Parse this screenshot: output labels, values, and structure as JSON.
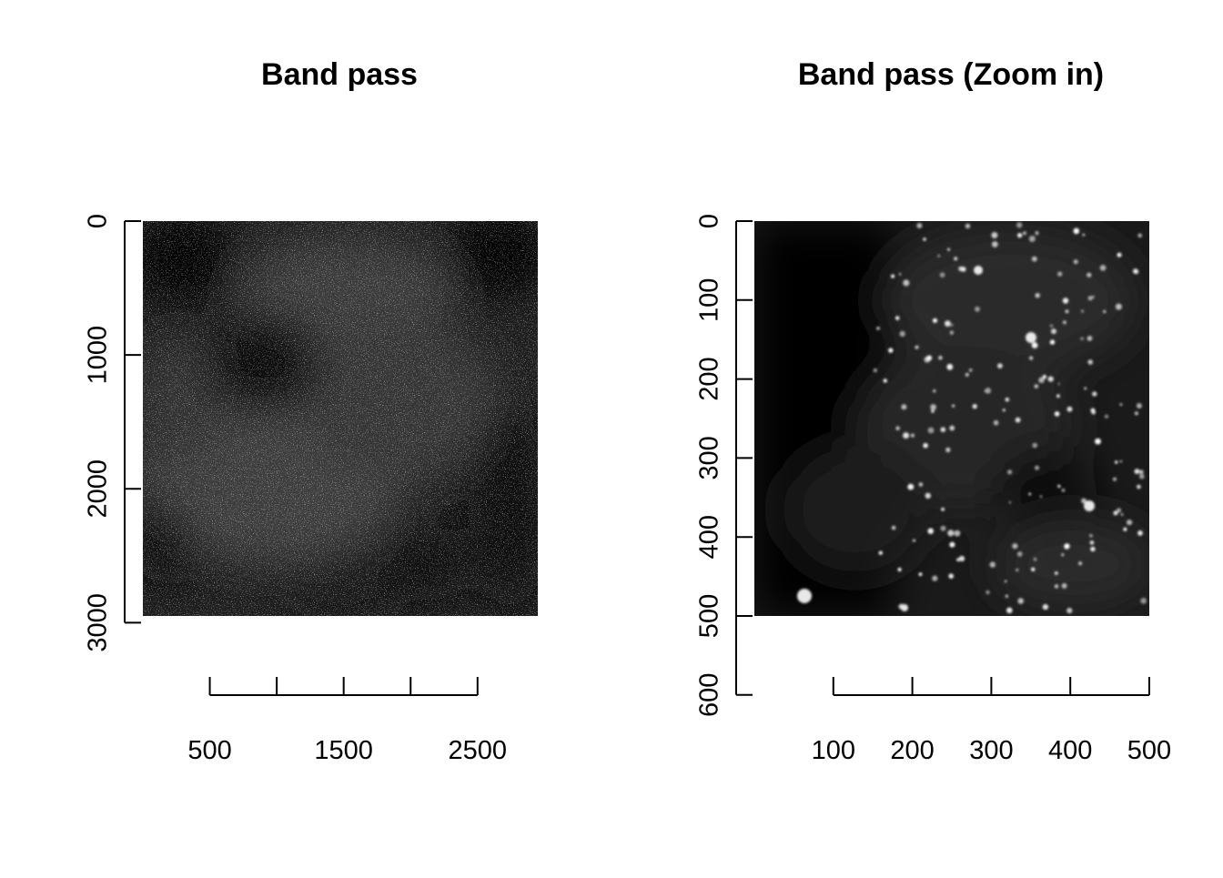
{
  "chart_data": [
    {
      "type": "heatmap",
      "title": "Band pass",
      "image_extent": {
        "x": [
          0,
          2950
        ],
        "y": [
          0,
          2950
        ]
      },
      "xaxis": {
        "ticks": [
          500,
          1000,
          1500,
          2000,
          2500
        ],
        "labels": [
          "500",
          "",
          "1500",
          "",
          "2500"
        ]
      },
      "yaxis": {
        "ticks": [
          0,
          1000,
          2000,
          3000
        ],
        "labels": [
          "0",
          "1000",
          "2000",
          "3000"
        ],
        "reversed": true
      },
      "colormap": "grayscale",
      "description_hidden": "fluorescence micrograph band-pass filtered"
    },
    {
      "type": "heatmap",
      "title": "Band pass (Zoom in)",
      "image_extent": {
        "x": [
          0,
          500
        ],
        "y": [
          0,
          500
        ]
      },
      "xaxis": {
        "ticks": [
          100,
          200,
          300,
          400,
          500
        ],
        "labels": [
          "100",
          "200",
          "300",
          "400",
          "500"
        ]
      },
      "yaxis": {
        "ticks": [
          0,
          100,
          200,
          300,
          400,
          500,
          600
        ],
        "labels": [
          "0",
          "100",
          "200",
          "300",
          "400",
          "500",
          "600"
        ],
        "reversed": true
      },
      "colormap": "grayscale"
    }
  ]
}
